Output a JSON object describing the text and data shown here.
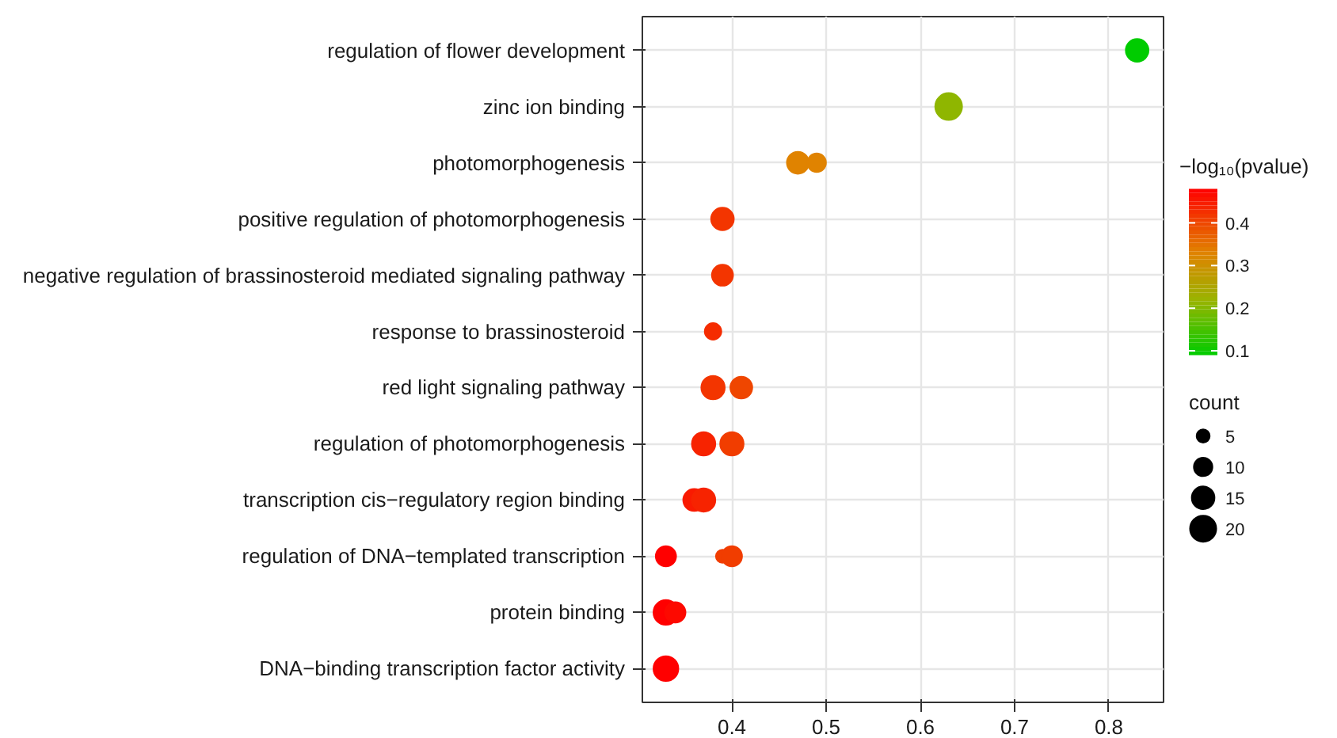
{
  "chart_data": {
    "type": "scatter",
    "orientation": "horizontal",
    "categories": [
      "regulation of flower development",
      "zinc ion binding",
      "photomorphogenesis",
      "positive regulation of photomorphogenesis",
      "negative regulation of brassinosteroid mediated signaling pathway",
      "response to brassinosteroid",
      "red light signaling pathway",
      "regulation of photomorphogenesis",
      "transcription cis−regulatory region binding",
      "regulation of DNA−templated transcription",
      "protein binding",
      "DNA−binding transcription factor activity"
    ],
    "series": [
      {
        "values": [
          0.83,
          0.63,
          0.47,
          0.39,
          0.39,
          0.38,
          0.38,
          0.37,
          0.36,
          0.33,
          0.33,
          0.33
        ],
        "sizes": [
          15,
          21,
          14,
          15,
          13,
          8,
          16,
          16,
          14,
          12,
          18,
          18
        ],
        "cvalues": [
          0.09,
          0.21,
          0.33,
          0.42,
          0.42,
          0.43,
          0.42,
          0.44,
          0.45,
          0.48,
          0.48,
          0.48
        ],
        "colors": [
          "#00cc00",
          "#8fb600",
          "#e08300",
          "#f33500",
          "#f33500",
          "#f52c00",
          "#f33500",
          "#f72300",
          "#f91a00",
          "#ff0000",
          "#ff0000",
          "#ff0000"
        ]
      },
      {
        "values": [
          null,
          null,
          0.49,
          null,
          null,
          null,
          0.41,
          0.4,
          0.37,
          0.39,
          0.34,
          null
        ],
        "sizes": [
          null,
          null,
          10,
          null,
          null,
          null,
          14,
          16,
          16,
          5,
          12,
          null
        ],
        "cvalues": [
          null,
          null,
          0.33,
          null,
          null,
          null,
          0.4,
          0.41,
          0.44,
          0.41,
          0.47,
          null
        ],
        "colors": [
          null,
          null,
          "#e08300",
          null,
          null,
          null,
          "#ef4600",
          "#f13d00",
          "#f72300",
          "#f13d00",
          "#fd0900",
          null
        ]
      },
      {
        "values": [
          null,
          null,
          null,
          null,
          null,
          null,
          null,
          null,
          null,
          0.4,
          null,
          null
        ],
        "sizes": [
          null,
          null,
          null,
          null,
          null,
          null,
          null,
          null,
          null,
          12,
          null,
          null
        ],
        "cvalues": [
          null,
          null,
          null,
          null,
          null,
          null,
          null,
          null,
          null,
          0.41,
          null,
          null
        ],
        "colors": [
          null,
          null,
          null,
          null,
          null,
          null,
          null,
          null,
          null,
          "#f13d00",
          null,
          null
        ]
      }
    ],
    "xlim": [
      0.305,
      0.858
    ],
    "xticks": [
      0.4,
      0.5,
      0.6,
      0.7,
      0.8
    ],
    "grid": true,
    "clabel": "−log₁₀(pvalue)",
    "clim": [
      0.09,
      0.48
    ],
    "cticks": [
      0.1,
      0.2,
      0.3,
      0.4
    ],
    "legend_title": "count",
    "size_legend": [
      5,
      10,
      15,
      20
    ]
  }
}
